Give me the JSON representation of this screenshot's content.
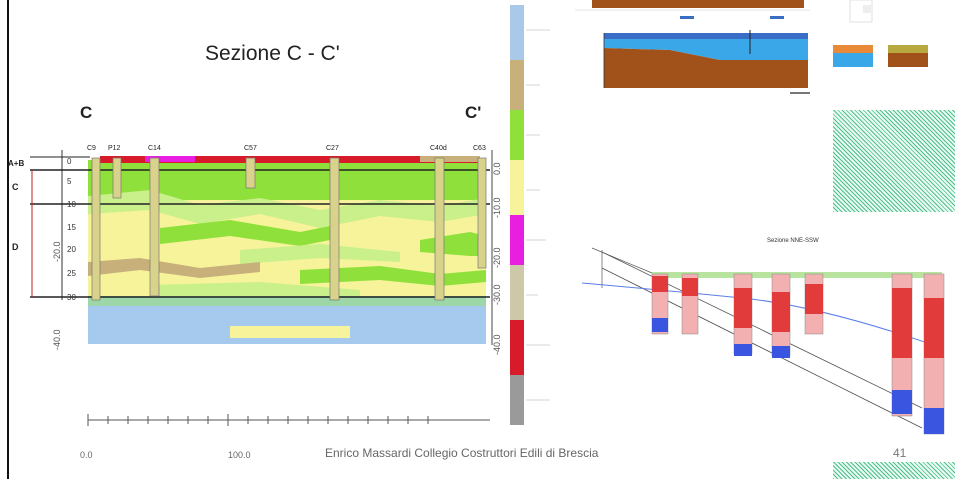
{
  "slide": {
    "title": "Sezione C - C'",
    "left_marker": "C",
    "right_marker": "C'",
    "footer": "Enrico Massardi Collegio Costruttori Edili di Brescia",
    "page_number": "41"
  },
  "section": {
    "borehole_labels": [
      "C9",
      "P12",
      "C14",
      "C57",
      "C27",
      "C40d",
      "C63"
    ],
    "zone_labels": [
      "A+B",
      "C",
      "D"
    ],
    "depth_ticks": [
      "0",
      "5",
      "10",
      "15",
      "20",
      "25",
      "30"
    ],
    "x_axis_ticks": [
      "0.0",
      "100.0"
    ],
    "right_axis_ticks": [
      "0.0",
      "-10.0",
      "-20.0",
      "-30.0",
      "-40.0"
    ],
    "left_axis_ticks": [
      "-20.0",
      "-40.0"
    ]
  },
  "colors": {
    "green": "#8fe03a",
    "light_green": "#c9f08a",
    "yellow": "#f6f39a",
    "tan": "#c7b07a",
    "red": "#d81b2a",
    "magenta": "#e81ee0",
    "blue": "#9ec9f0",
    "legend_blue": "#7fb4e8",
    "grey": "#9a9a9a"
  },
  "inset_bottom": {
    "title": "Sezione NNE-SSW"
  }
}
